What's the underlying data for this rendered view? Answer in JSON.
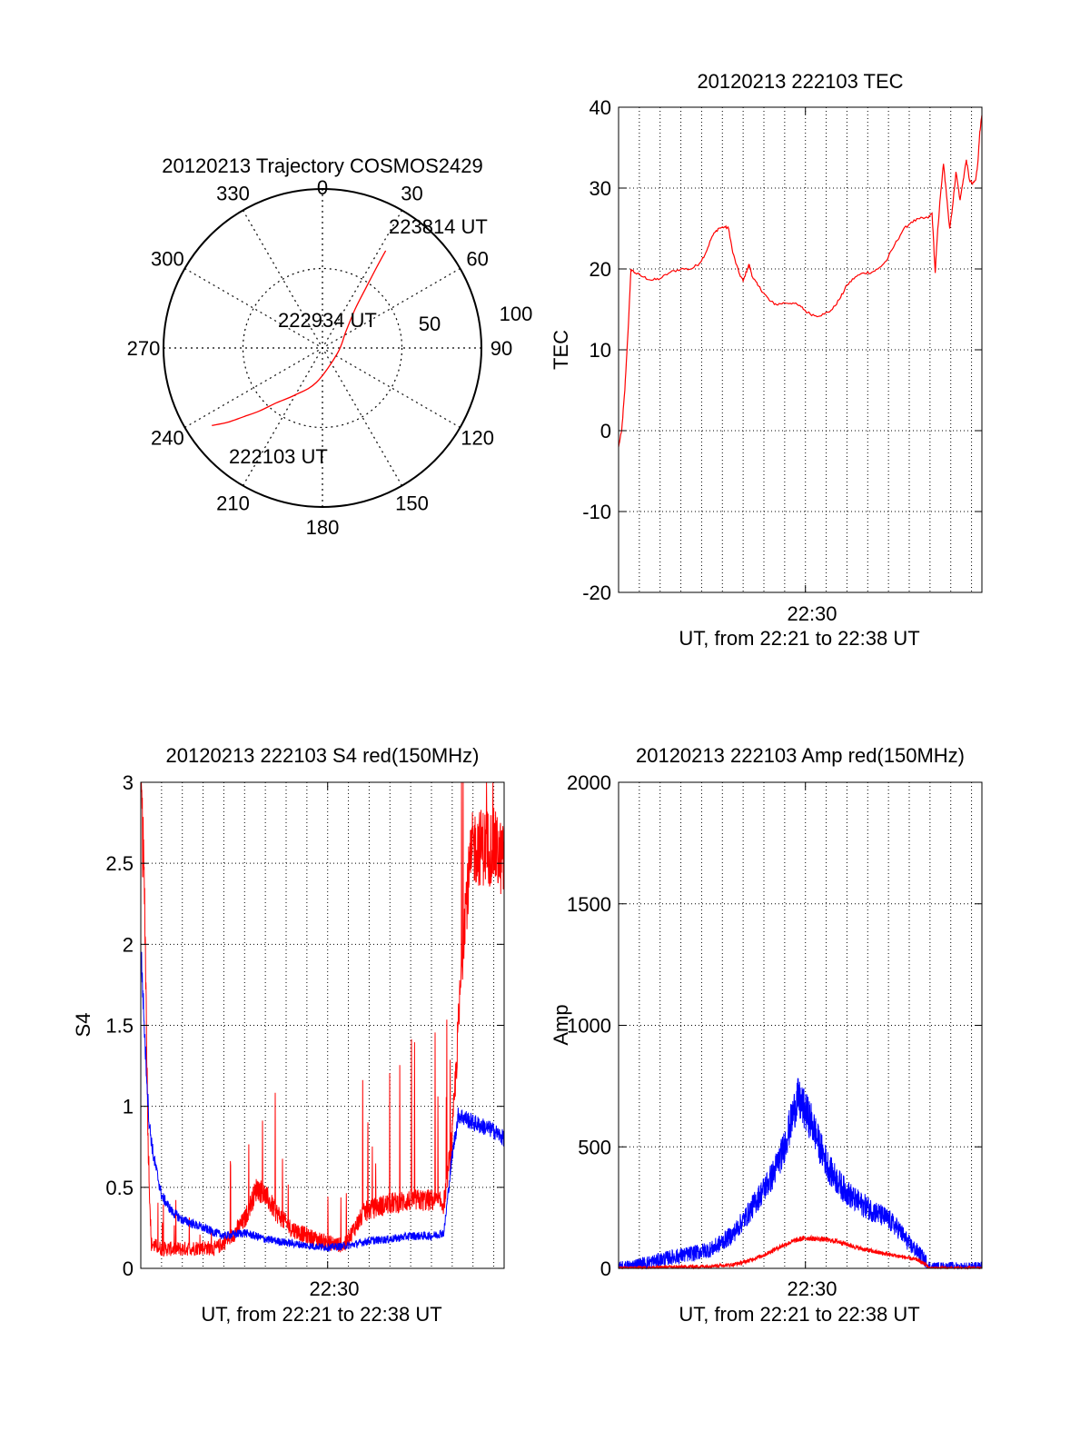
{
  "chart_data": [
    {
      "id": "trajectory",
      "type": "polar",
      "title": "20120213 Trajectory COSMOS2429",
      "azimuth_labels": [
        "0",
        "30",
        "60",
        "90",
        "120",
        "150",
        "180",
        "210",
        "240",
        "270",
        "300",
        "330"
      ],
      "radial_labels": [
        "50",
        "100"
      ],
      "radial_max": 100,
      "path": {
        "color": "#ff0000",
        "points": [
          {
            "az": 235,
            "zen": 85
          },
          {
            "az": 232,
            "zen": 76
          },
          {
            "az": 229,
            "zen": 66
          },
          {
            "az": 225,
            "zen": 56
          },
          {
            "az": 220,
            "zen": 45
          },
          {
            "az": 210,
            "zen": 34
          },
          {
            "az": 190,
            "zen": 22
          },
          {
            "az": 110,
            "zen": 10
          },
          {
            "az": 55,
            "zen": 18
          },
          {
            "az": 40,
            "zen": 32
          },
          {
            "az": 36,
            "zen": 46
          },
          {
            "az": 34,
            "zen": 60
          },
          {
            "az": 33,
            "zen": 73
          }
        ]
      },
      "annotations": [
        {
          "text": "223814 UT",
          "az": 33,
          "zen": 73
        },
        {
          "text": "222934 UT",
          "az": 150,
          "zen": 2
        },
        {
          "text": "222103 UT",
          "az": 235,
          "zen": 85
        }
      ]
    },
    {
      "id": "tec",
      "type": "line",
      "title": "20120213 222103 TEC",
      "ylabel": "TEC",
      "xlabel": "UT, from 22:21 to 22:38 UT",
      "xtick_label": "22:30",
      "xlim": [
        0,
        17.5
      ],
      "ylim": [
        -20,
        40
      ],
      "yticks": [
        "-20",
        "-10",
        "0",
        "10",
        "20",
        "30",
        "40"
      ],
      "series": [
        {
          "color": "#ff0000",
          "points": [
            [
              0,
              -2
            ],
            [
              0.15,
              0
            ],
            [
              0.3,
              5
            ],
            [
              0.45,
              12
            ],
            [
              0.6,
              20
            ],
            [
              0.8,
              19.5
            ],
            [
              1.2,
              19
            ],
            [
              1.6,
              18.6
            ],
            [
              2.0,
              18.8
            ],
            [
              2.5,
              19.6
            ],
            [
              3.0,
              20
            ],
            [
              3.5,
              20
            ],
            [
              3.9,
              20.7
            ],
            [
              4.2,
              22
            ],
            [
              4.5,
              24
            ],
            [
              4.8,
              25
            ],
            [
              5.1,
              25.2
            ],
            [
              5.3,
              25
            ],
            [
              5.5,
              22
            ],
            [
              5.8,
              19.5
            ],
            [
              6.0,
              18.5
            ],
            [
              6.2,
              20
            ],
            [
              6.3,
              20.5
            ],
            [
              6.45,
              19
            ],
            [
              6.7,
              18
            ],
            [
              7.0,
              17
            ],
            [
              7.3,
              16
            ],
            [
              7.6,
              15.6
            ],
            [
              8.0,
              15.8
            ],
            [
              8.4,
              15.8
            ],
            [
              8.8,
              15.3
            ],
            [
              9.1,
              14.6
            ],
            [
              9.5,
              14.2
            ],
            [
              9.9,
              14.4
            ],
            [
              10.3,
              15
            ],
            [
              10.7,
              16.5
            ],
            [
              11.0,
              18
            ],
            [
              11.4,
              19
            ],
            [
              11.8,
              19.5
            ],
            [
              12.2,
              19.6
            ],
            [
              12.5,
              20
            ],
            [
              12.9,
              21
            ],
            [
              13.3,
              23
            ],
            [
              13.7,
              24.8
            ],
            [
              14.1,
              25.8
            ],
            [
              14.5,
              26.2
            ],
            [
              14.9,
              26.3
            ],
            [
              15.1,
              26.9
            ],
            [
              15.25,
              19.5
            ],
            [
              15.35,
              24
            ],
            [
              15.5,
              29
            ],
            [
              15.65,
              33
            ],
            [
              15.8,
              29
            ],
            [
              15.95,
              25
            ],
            [
              16.1,
              28
            ],
            [
              16.25,
              32
            ],
            [
              16.45,
              28.5
            ],
            [
              16.6,
              31
            ],
            [
              16.75,
              33.5
            ],
            [
              16.9,
              31
            ],
            [
              17.05,
              30.5
            ],
            [
              17.2,
              31
            ],
            [
              17.3,
              33
            ],
            [
              17.4,
              37
            ],
            [
              17.5,
              39
            ]
          ]
        }
      ]
    },
    {
      "id": "s4",
      "type": "line",
      "title": "20120213 222103 S4 red(150MHz)",
      "ylabel": "S4",
      "xlabel": "UT, from 22:21 to 22:38 UT",
      "xtick_label": "22:30",
      "xlim": [
        0,
        17.5
      ],
      "ylim": [
        0,
        3
      ],
      "yticks": [
        "0",
        "0.5",
        "1",
        "1.5",
        "2",
        "2.5",
        "3"
      ],
      "series": [
        {
          "color": "#ff0000",
          "noise": 0.12,
          "points": [
            [
              0,
              3
            ],
            [
              0.2,
              2.2
            ],
            [
              0.35,
              0.8
            ],
            [
              0.5,
              0.15
            ],
            [
              1.0,
              0.12
            ],
            [
              2.0,
              0.12
            ],
            [
              3.0,
              0.13
            ],
            [
              3.6,
              0.12
            ],
            [
              4.4,
              0.2
            ],
            [
              5.0,
              0.3
            ],
            [
              5.6,
              0.5
            ],
            [
              6.0,
              0.45
            ],
            [
              6.5,
              0.35
            ],
            [
              7.2,
              0.25
            ],
            [
              8.0,
              0.2
            ],
            [
              9.0,
              0.16
            ],
            [
              9.8,
              0.14
            ],
            [
              10.3,
              0.25
            ],
            [
              10.8,
              0.35
            ],
            [
              11.4,
              0.38
            ],
            [
              12.0,
              0.4
            ],
            [
              13.0,
              0.42
            ],
            [
              14.0,
              0.42
            ],
            [
              14.6,
              0.4
            ],
            [
              15.0,
              0.8
            ],
            [
              15.3,
              1.5
            ],
            [
              15.6,
              2.2
            ],
            [
              16.0,
              2.6
            ],
            [
              17.0,
              2.6
            ],
            [
              17.5,
              2.5
            ]
          ]
        },
        {
          "color": "#0000ff",
          "noise": 0.06,
          "points": [
            [
              0,
              2.0
            ],
            [
              0.2,
              1.4
            ],
            [
              0.4,
              0.9
            ],
            [
              0.6,
              0.7
            ],
            [
              1.0,
              0.45
            ],
            [
              1.5,
              0.35
            ],
            [
              2.0,
              0.3
            ],
            [
              3.0,
              0.25
            ],
            [
              4.0,
              0.2
            ],
            [
              5.0,
              0.22
            ],
            [
              6.0,
              0.18
            ],
            [
              7.0,
              0.16
            ],
            [
              8.0,
              0.14
            ],
            [
              9.0,
              0.13
            ],
            [
              10.0,
              0.14
            ],
            [
              11.0,
              0.17
            ],
            [
              12.0,
              0.18
            ],
            [
              13.0,
              0.2
            ],
            [
              14.0,
              0.2
            ],
            [
              14.6,
              0.22
            ],
            [
              15.0,
              0.7
            ],
            [
              15.3,
              0.95
            ],
            [
              16.0,
              0.9
            ],
            [
              17.0,
              0.85
            ],
            [
              17.5,
              0.8
            ]
          ]
        }
      ]
    },
    {
      "id": "amp",
      "type": "line",
      "title": "20120213 222103 Amp red(150MHz)",
      "ylabel": "Amp",
      "xlabel": "UT, from 22:21 to 22:38 UT",
      "xtick_label": "22:30",
      "xlim": [
        0,
        17.5
      ],
      "ylim": [
        0,
        2000
      ],
      "yticks": [
        "0",
        "500",
        "1000",
        "1500",
        "2000"
      ],
      "series": [
        {
          "color": "#0000ff",
          "noise": 90,
          "points": [
            [
              0,
              0
            ],
            [
              0.5,
              8
            ],
            [
              1.5,
              25
            ],
            [
              2.5,
              45
            ],
            [
              3.5,
              60
            ],
            [
              4.5,
              80
            ],
            [
              5.5,
              140
            ],
            [
              6.2,
              220
            ],
            [
              6.8,
              300
            ],
            [
              7.4,
              380
            ],
            [
              7.9,
              480
            ],
            [
              8.3,
              600
            ],
            [
              8.6,
              700
            ],
            [
              8.9,
              660
            ],
            [
              9.3,
              600
            ],
            [
              9.7,
              500
            ],
            [
              10.2,
              400
            ],
            [
              10.8,
              330
            ],
            [
              11.4,
              280
            ],
            [
              12.0,
              250
            ],
            [
              12.6,
              220
            ],
            [
              13.0,
              200
            ],
            [
              13.5,
              160
            ],
            [
              14.0,
              100
            ],
            [
              14.5,
              60
            ],
            [
              14.8,
              30
            ],
            [
              15.0,
              0
            ],
            [
              17.5,
              0
            ]
          ]
        },
        {
          "color": "#ff0000",
          "noise": 25,
          "points": [
            [
              0,
              0
            ],
            [
              2,
              4
            ],
            [
              4,
              8
            ],
            [
              5.5,
              15
            ],
            [
              6.2,
              30
            ],
            [
              7.0,
              55
            ],
            [
              7.8,
              90
            ],
            [
              8.5,
              115
            ],
            [
              9.0,
              125
            ],
            [
              9.8,
              120
            ],
            [
              10.6,
              110
            ],
            [
              11.5,
              85
            ],
            [
              12.5,
              65
            ],
            [
              13.5,
              50
            ],
            [
              14.4,
              35
            ],
            [
              14.8,
              15
            ],
            [
              15.0,
              0
            ],
            [
              17.5,
              0
            ]
          ]
        }
      ]
    }
  ]
}
